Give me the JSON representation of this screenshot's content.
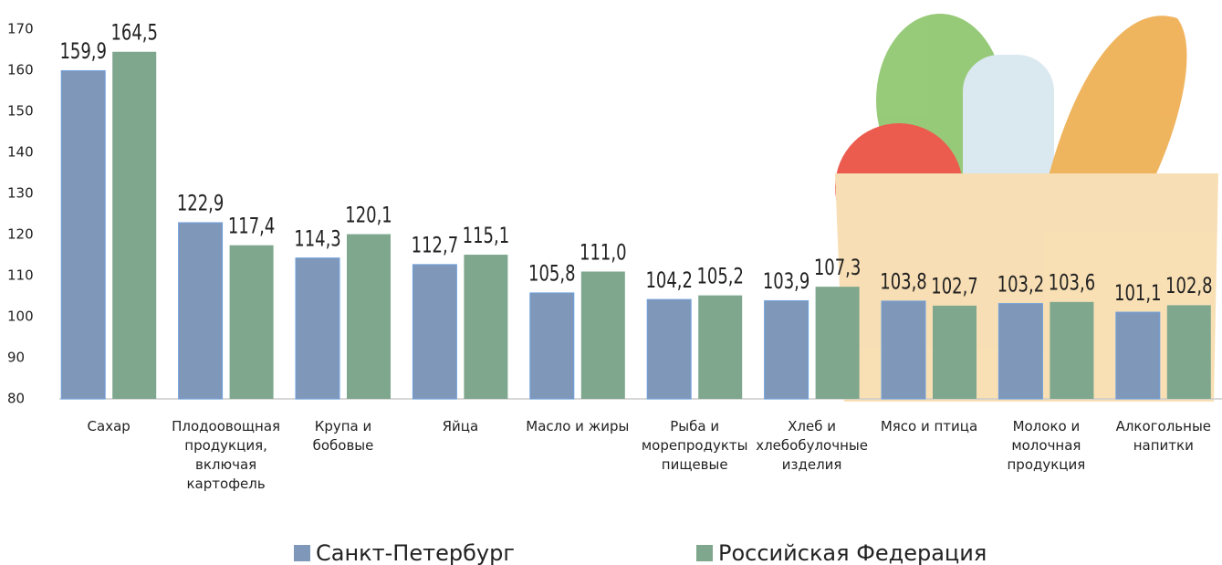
{
  "chart_data": {
    "type": "bar",
    "categories": [
      "Сахар",
      "Плодоовощная продукция, включая картофель",
      "Крупа и бобовые",
      "Яйца",
      "Масло и жиры",
      "Рыба и морепродукты пищевые",
      "Хлеб и хлебобулочные изделия",
      "Мясо и птица",
      "Молоко и молочная продукция",
      "Алкогольные напитки"
    ],
    "series": [
      {
        "name": "Санкт-Петербург",
        "color": "#7f97b9",
        "values": [
          159.9,
          122.9,
          114.3,
          112.7,
          105.8,
          104.2,
          103.9,
          103.8,
          103.2,
          101.1
        ],
        "value_labels": [
          "159,9",
          "122,9",
          "114,3",
          "112,7",
          "105,8",
          "104,2",
          "103,9",
          "103,8",
          "103,2",
          "101,1"
        ]
      },
      {
        "name": "Российская Федерация",
        "color": "#7ea78e",
        "values": [
          164.5,
          117.4,
          120.1,
          115.1,
          111.0,
          105.2,
          107.3,
          102.7,
          103.6,
          102.8
        ],
        "value_labels": [
          "164,5",
          "117,4",
          "120,1",
          "115,1",
          "111,0",
          "105,2",
          "107,3",
          "102,7",
          "103,6",
          "102,8"
        ]
      }
    ],
    "ylim": [
      80,
      170
    ],
    "yticks": [
      80,
      90,
      100,
      110,
      120,
      130,
      140,
      150,
      160,
      170
    ]
  }
}
